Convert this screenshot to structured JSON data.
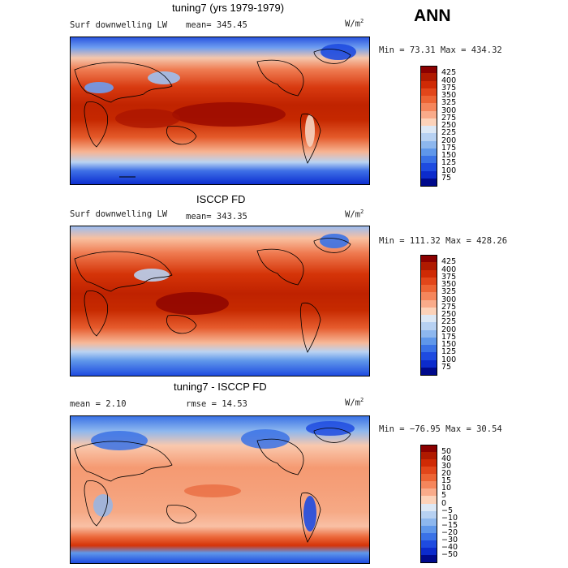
{
  "season": "ANN",
  "panels": [
    {
      "title": "tuning7 (yrs 1979-1979)",
      "left_label": "Surf downwelling LW",
      "stat_label": "mean= 345.45",
      "units_base": "W/m",
      "units_exp": "2",
      "range_text": "Min =  73.31 Max = 434.32",
      "colorbar_labels": [
        "425",
        "400",
        "375",
        "350",
        "325",
        "300",
        "275",
        "250",
        "225",
        "200",
        "175",
        "150",
        "125",
        "100",
        "75"
      ],
      "colorbar_colors": [
        "#8b0000",
        "#b01a00",
        "#cf2a05",
        "#e2461a",
        "#ed6434",
        "#f5865c",
        "#f9ab8a",
        "#fcd2b9",
        "#dde8f5",
        "#b7d1f2",
        "#8db7ee",
        "#5f97ea",
        "#3a72e6",
        "#1e4be0",
        "#0c2bcc",
        "#000a8c"
      ]
    },
    {
      "title": "ISCCP FD",
      "left_label": "Surf downwelling LW",
      "stat_label": "mean= 343.35",
      "units_base": "W/m",
      "units_exp": "2",
      "range_text": "Min = 111.32 Max = 428.26",
      "colorbar_labels": [
        "425",
        "400",
        "375",
        "350",
        "325",
        "300",
        "275",
        "250",
        "225",
        "200",
        "175",
        "150",
        "125",
        "100",
        "75"
      ],
      "colorbar_colors": [
        "#8b0000",
        "#b01a00",
        "#cf2a05",
        "#e2461a",
        "#ed6434",
        "#f5865c",
        "#f9ab8a",
        "#fcd2b9",
        "#dde8f5",
        "#b7d1f2",
        "#8db7ee",
        "#5f97ea",
        "#3a72e6",
        "#1e4be0",
        "#0c2bcc",
        "#000a8c"
      ]
    },
    {
      "title": "tuning7 - ISCCP FD",
      "left_label": "mean =    2.10",
      "stat_label": "rmse =   14.53",
      "units_base": "W/m",
      "units_exp": "2",
      "range_text": "Min = −76.95 Max =   30.54",
      "colorbar_labels": [
        "50",
        "40",
        "30",
        "20",
        "15",
        "10",
        "5",
        "0",
        "−5",
        "−10",
        "−15",
        "−20",
        "−30",
        "−40",
        "−50"
      ],
      "colorbar_colors": [
        "#8b0000",
        "#b01a00",
        "#cf2a05",
        "#e2461a",
        "#ed6434",
        "#f5865c",
        "#f9ab8a",
        "#fcd2b9",
        "#dde8f5",
        "#b7d1f2",
        "#8db7ee",
        "#5f97ea",
        "#3a72e6",
        "#1e4be0",
        "#0c2bcc",
        "#000a8c"
      ]
    }
  ]
}
